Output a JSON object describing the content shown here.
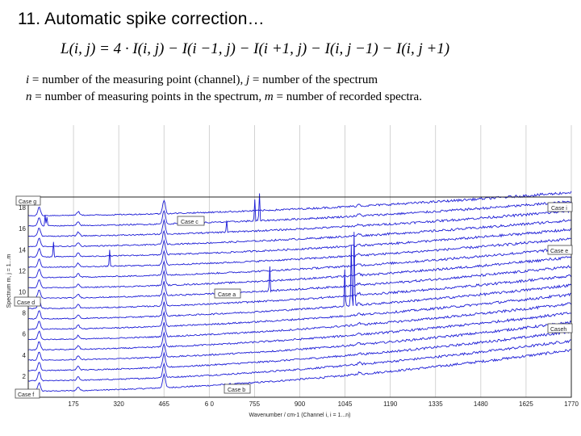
{
  "title": "11. Automatic spike correction…",
  "formula": "L(i, j) = 4 · I(i, j) − I(i −1, j) − I(i +1, j) − I(i, j −1) − I(i, j +1)",
  "notes": {
    "line1": {
      "v1": "i",
      "t1": " = number of the measuring point (channel), ",
      "v2": "j",
      "t2": " = number of the spectrum"
    },
    "line2": {
      "v1": "n",
      "t1": " = number of measuring points in the spectrum, ",
      "v2": "m",
      "t2": " = number of recorded spectra."
    }
  },
  "chart_data": {
    "type": "line",
    "title": "",
    "xlabel": "Wavenumber / cm-1 (Channel i, i = 1...n)",
    "ylabel": "Spectrum m, j = 1...m",
    "xlim": [
      30,
      1770
    ],
    "ylim": [
      0,
      19
    ],
    "x_ticks": [
      175,
      320,
      465,
      610,
      755,
      900,
      1045,
      1190,
      1335,
      1480,
      1625,
      1770
    ],
    "x_tick_labels": [
      "175",
      "320",
      "465",
      "6 0",
      "755",
      "900",
      "1045",
      "1190",
      "1335",
      "1480",
      "1625",
      "1770"
    ],
    "y_ticks": [
      2,
      4,
      6,
      8,
      10,
      12,
      14,
      16,
      18
    ],
    "y_tick_labels": [
      "2",
      "4",
      "6",
      "8",
      "10",
      "12",
      "14",
      "16",
      "18"
    ],
    "grid": true,
    "series_count": 18,
    "series_color": "#1c1cd6",
    "series_description": "18 stacked Raman spectra, spectrum j offset by j units; rising baseline toward high wavenumber",
    "baseline_rise_at_max": 4.0,
    "peaks": [
      {
        "x": 65,
        "height": 0.8
      },
      {
        "x": 190,
        "height": 0.35
      },
      {
        "x": 465,
        "height": 1.3
      },
      {
        "x": 1090,
        "height": 0.18
      }
    ],
    "spikes": [
      {
        "series": 17,
        "x": 85,
        "height": 1.0,
        "label": "Case g"
      },
      {
        "series": 17,
        "x": 90,
        "height": 0.8,
        "label": "Case g"
      },
      {
        "series": 17,
        "x": 755,
        "height": 2.0,
        "label": "Case c"
      },
      {
        "series": 17,
        "x": 770,
        "height": 2.6,
        "label": "Case c"
      },
      {
        "series": 16,
        "x": 665,
        "height": 1.1,
        "label": "Case c"
      },
      {
        "series": 14,
        "x": 110,
        "height": 1.4,
        "label": "Case e"
      },
      {
        "series": 13,
        "x": 290,
        "height": 1.6,
        "label": "Case i"
      },
      {
        "series": 10,
        "x": 803,
        "height": 2.3,
        "label": "Case a"
      },
      {
        "series": 8,
        "x": 1045,
        "height": 3.5,
        "label": "Case d"
      },
      {
        "series": 8,
        "x": 1065,
        "height": 5.8,
        "label": "Case d"
      },
      {
        "series": 8,
        "x": 1075,
        "height": 7.0,
        "label": "Case d"
      }
    ],
    "annotations": [
      "Case g",
      "Case c",
      "Case i",
      "Case e",
      "Case a",
      "Case d",
      "Caseh",
      "Case b",
      "Case f"
    ]
  }
}
